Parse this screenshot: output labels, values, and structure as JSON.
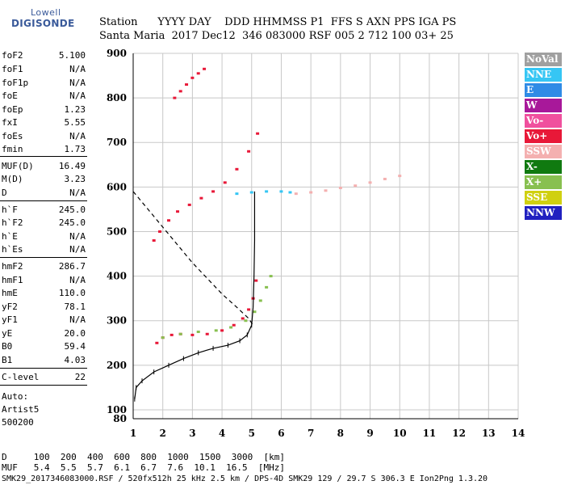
{
  "logo": {
    "line1": "Lowell",
    "line2": "DIGISONDE"
  },
  "header": {
    "row1": "Station      YYYY DAY    DDD HHMMSS P1  FFS S AXN PPS IGA PS",
    "row2": "Santa Maria  2017 Dec12  346 083000 RSF 005 2 712 100 03+ 25"
  },
  "params": [
    {
      "name": "foF2",
      "value": "5.100"
    },
    {
      "name": "foF1",
      "value": "N/A"
    },
    {
      "name": "foF1p",
      "value": "N/A"
    },
    {
      "name": "foE",
      "value": "N/A"
    },
    {
      "name": "foEp",
      "value": "1.23"
    },
    {
      "name": "fxI",
      "value": "5.55"
    },
    {
      "name": "foEs",
      "value": "N/A"
    },
    {
      "name": "fmin",
      "value": "1.73"
    },
    {
      "name": "MUF(D)",
      "value": "16.49"
    },
    {
      "name": "M(D)",
      "value": "3.23"
    },
    {
      "name": "D",
      "value": "N/A"
    },
    {
      "name": "h`F",
      "value": "245.0"
    },
    {
      "name": "h`F2",
      "value": "245.0"
    },
    {
      "name": "h`E",
      "value": "N/A"
    },
    {
      "name": "h`Es",
      "value": "N/A"
    },
    {
      "name": "hmF2",
      "value": "286.7"
    },
    {
      "name": "hmF1",
      "value": "N/A"
    },
    {
      "name": "hmE",
      "value": "110.0"
    },
    {
      "name": "yF2",
      "value": "78.1"
    },
    {
      "name": "yF1",
      "value": "N/A"
    },
    {
      "name": "yE",
      "value": "20.0"
    },
    {
      "name": "B0",
      "value": "59.4"
    },
    {
      "name": "B1",
      "value": "4.03"
    },
    {
      "name": "C-level",
      "value": "22"
    }
  ],
  "autoscaling": {
    "line1": "Auto:",
    "line2": "Artist5",
    "line3": "500200"
  },
  "legend": [
    {
      "label": "NoVal",
      "color": "#a0a0a0"
    },
    {
      "label": "NNE",
      "color": "#36c6f4"
    },
    {
      "label": "E",
      "color": "#2f8be6"
    },
    {
      "label": "W",
      "color": "#a8189a"
    },
    {
      "label": "Vo-",
      "color": "#f0509e"
    },
    {
      "label": "Vo+",
      "color": "#e81838"
    },
    {
      "label": "SSW",
      "color": "#f4b0b0"
    },
    {
      "label": "X-",
      "color": "#107a10"
    },
    {
      "label": "X+",
      "color": "#88c050"
    },
    {
      "label": "SSE",
      "color": "#d0d010"
    },
    {
      "label": "NNW",
      "color": "#2020c0"
    }
  ],
  "footer": {
    "d_row": "D     100  200  400  600  800  1000  1500  3000  [km]",
    "muf_row": "MUF   5.4  5.5  5.7  6.1  6.7  7.6  10.1  16.5  [MHz]",
    "file_row": "SMK29_2017346083000.RSF / 520fx512h 25 kHz 2.5 km / DPS-4D SMK29 129 / 29.7 S 306.3 E Ion2Png 1.3.20"
  },
  "chart_data": {
    "type": "scatter",
    "xlim": [
      1,
      14
    ],
    "ylim": [
      80,
      900
    ],
    "x_ticks": [
      1,
      2,
      3,
      4,
      5,
      6,
      7,
      8,
      9,
      10,
      11,
      12,
      13,
      14
    ],
    "y_ticks": [
      100,
      200,
      300,
      400,
      500,
      600,
      700,
      800,
      900
    ],
    "y_bottom_label": "80",
    "grid": true,
    "series": [
      {
        "name": "Vo+",
        "x": [
          1.8,
          2.0,
          2.3,
          2.6,
          3.0,
          3.5,
          4.0,
          4.4,
          4.7,
          4.9,
          5.05,
          5.15
        ],
        "y": [
          250,
          262,
          268,
          270,
          268,
          270,
          278,
          290,
          305,
          325,
          350,
          390
        ]
      },
      {
        "name": "X+",
        "x": [
          2.0,
          2.6,
          3.2,
          3.8,
          4.3,
          4.8,
          5.1,
          5.3,
          5.5,
          5.65
        ],
        "y": [
          262,
          270,
          275,
          278,
          285,
          300,
          320,
          345,
          375,
          400
        ]
      },
      {
        "name": "Vo+",
        "x": [
          1.7,
          1.9,
          2.2,
          2.5,
          2.9,
          3.3,
          3.7,
          4.1,
          4.5,
          4.9,
          5.2
        ],
        "y": [
          480,
          500,
          525,
          545,
          560,
          575,
          590,
          610,
          640,
          680,
          720
        ]
      },
      {
        "name": "SSW",
        "x": [
          6.5,
          7.0,
          7.5,
          8.0,
          8.5,
          9.0,
          9.5,
          10.0
        ],
        "y": [
          585,
          588,
          592,
          598,
          603,
          610,
          618,
          625
        ]
      },
      {
        "name": "NNE",
        "x": [
          4.5,
          5.0,
          5.5,
          6.0,
          6.3
        ],
        "y": [
          585,
          588,
          590,
          590,
          588
        ]
      },
      {
        "name": "Vo+",
        "x": [
          2.4,
          2.6,
          2.8,
          3.0,
          3.2,
          3.4
        ],
        "y": [
          800,
          815,
          830,
          845,
          855,
          865
        ]
      }
    ],
    "profile": {
      "name": "profile",
      "x": [
        1.05,
        1.1,
        1.3,
        1.7,
        2.2,
        2.7,
        3.2,
        3.7,
        4.2,
        4.6,
        4.85,
        5.0,
        5.05,
        5.08,
        5.1,
        5.1
      ],
      "y": [
        124,
        150,
        165,
        185,
        200,
        215,
        228,
        238,
        245,
        255,
        268,
        290,
        330,
        400,
        480,
        590
      ]
    },
    "trace_curve": {
      "x": [
        1.0,
        1.5,
        2.0,
        2.5,
        3.0,
        3.5,
        4.0,
        4.5,
        4.9,
        5.05
      ],
      "y": [
        590,
        550,
        510,
        470,
        430,
        395,
        360,
        330,
        305,
        290
      ]
    }
  }
}
